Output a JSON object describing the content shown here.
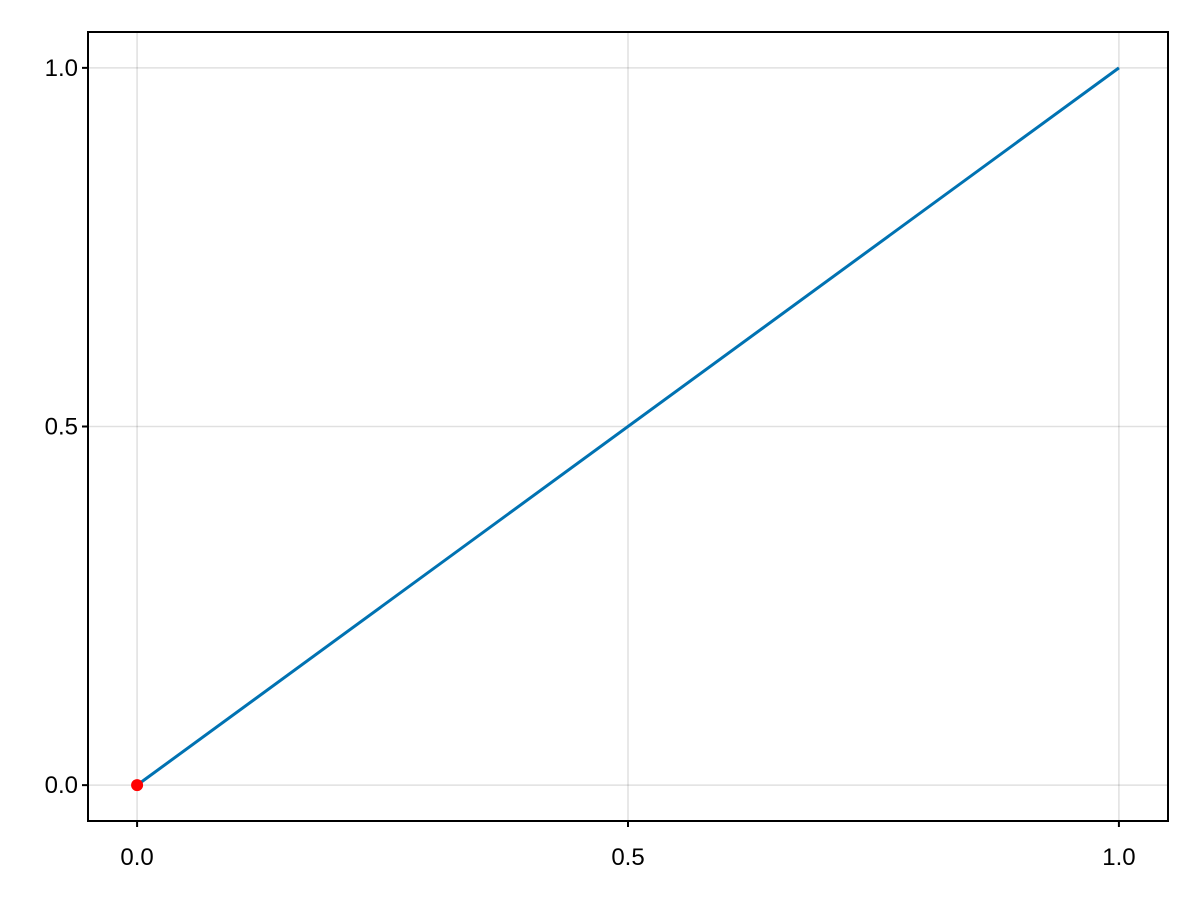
{
  "chart_data": {
    "type": "line",
    "title": "",
    "xlabel": "",
    "ylabel": "",
    "xlim": [
      -0.05,
      1.05
    ],
    "ylim": [
      -0.05,
      1.05
    ],
    "grid": true,
    "x_ticks": [
      "0.0",
      "0.5",
      "1.0"
    ],
    "y_ticks": [
      "0.0",
      "0.5",
      "1.0"
    ],
    "series": [
      {
        "type": "line",
        "x": [
          0,
          1
        ],
        "y": [
          0,
          1
        ],
        "color": "#0072b2"
      },
      {
        "type": "scatter",
        "x": [
          0
        ],
        "y": [
          0
        ],
        "color": "#ff0000"
      }
    ]
  }
}
